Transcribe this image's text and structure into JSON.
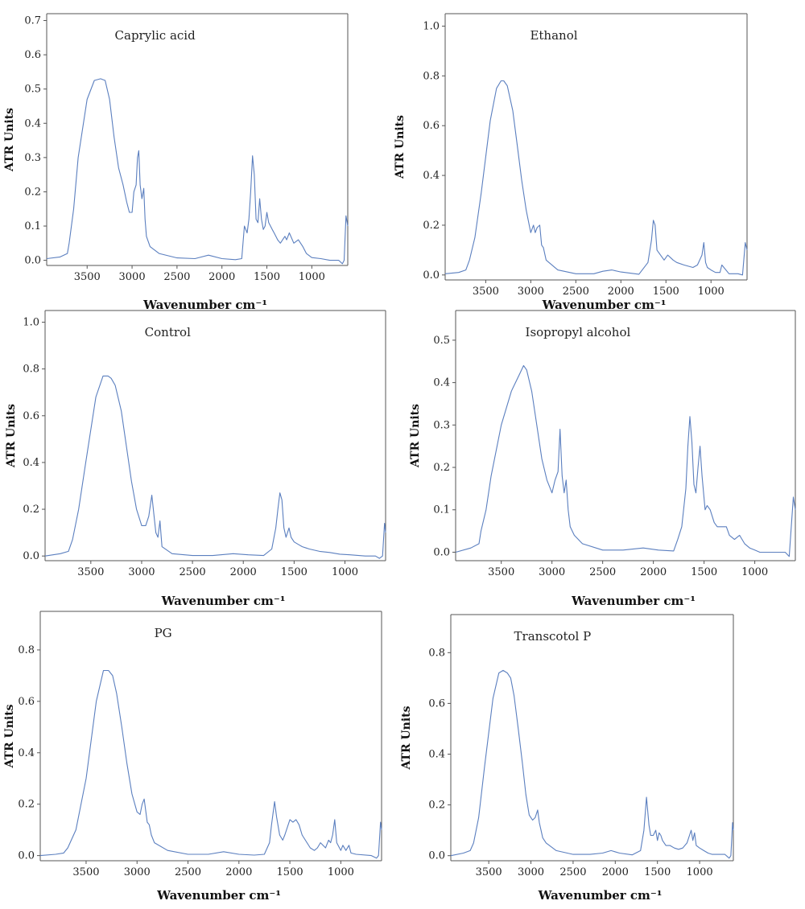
{
  "figure": {
    "type": "multi-panel FTIR-ATR spectra"
  },
  "chart_data": [
    {
      "type": "line",
      "title": "Caprylic acid",
      "xlabel": "Wavenumber cm⁻¹",
      "ylabel": "ATR Units",
      "xlim": [
        3950,
        600
      ],
      "ylim": [
        -0.015,
        0.72
      ],
      "xticks": [
        3500,
        3000,
        2500,
        2000,
        1500,
        1000
      ],
      "yticks": [
        0.0,
        0.1,
        0.2,
        0.3,
        0.4,
        0.5,
        0.6,
        0.7
      ],
      "ytick_labels": [
        "0.0",
        "0.1",
        "0.2",
        "0.3",
        "0.4",
        "0.5",
        "0.6",
        "0.7"
      ],
      "series": [
        {
          "color": "#5b7fbf",
          "x": [
            3950,
            3800,
            3720,
            3700,
            3650,
            3600,
            3500,
            3420,
            3350,
            3300,
            3250,
            3200,
            3150,
            3100,
            3060,
            3030,
            3000,
            2980,
            2955,
            2940,
            2925,
            2910,
            2890,
            2870,
            2855,
            2840,
            2800,
            2700,
            2500,
            2300,
            2150,
            2000,
            1850,
            1780,
            1750,
            1720,
            1700,
            1680,
            1660,
            1640,
            1620,
            1600,
            1580,
            1560,
            1540,
            1520,
            1500,
            1480,
            1460,
            1440,
            1420,
            1400,
            1380,
            1350,
            1300,
            1280,
            1250,
            1200,
            1150,
            1100,
            1060,
            1000,
            900,
            800,
            700,
            660,
            640,
            620,
            600
          ],
          "y": [
            0.005,
            0.01,
            0.02,
            0.05,
            0.15,
            0.3,
            0.47,
            0.525,
            0.53,
            0.525,
            0.47,
            0.36,
            0.27,
            0.22,
            0.17,
            0.14,
            0.14,
            0.2,
            0.22,
            0.3,
            0.32,
            0.22,
            0.18,
            0.21,
            0.12,
            0.07,
            0.04,
            0.02,
            0.007,
            0.005,
            0.015,
            0.005,
            0.002,
            0.005,
            0.1,
            0.08,
            0.12,
            0.2,
            0.305,
            0.25,
            0.12,
            0.11,
            0.18,
            0.12,
            0.09,
            0.1,
            0.14,
            0.11,
            0.1,
            0.09,
            0.08,
            0.07,
            0.06,
            0.05,
            0.07,
            0.06,
            0.08,
            0.05,
            0.06,
            0.04,
            0.02,
            0.008,
            0.005,
            0.0,
            0.0,
            -0.01,
            0.0,
            0.13,
            0.1
          ]
        }
      ]
    },
    {
      "type": "line",
      "title": "Ethanol",
      "xlabel": "Wavenumber cm⁻¹",
      "ylabel": "ATR Units",
      "xlim": [
        3950,
        600
      ],
      "ylim": [
        -0.02,
        1.05
      ],
      "xticks": [
        3500,
        3000,
        2500,
        2000,
        1500,
        1000
      ],
      "yticks": [
        0.0,
        0.2,
        0.4,
        0.6,
        0.8,
        1.0
      ],
      "ytick_labels": [
        "0.0",
        "0.2",
        "0.4",
        "0.6",
        "0.8",
        "1.0"
      ],
      "series": [
        {
          "color": "#5b7fbf",
          "x": [
            3950,
            3800,
            3720,
            3680,
            3620,
            3550,
            3450,
            3380,
            3330,
            3300,
            3260,
            3200,
            3150,
            3100,
            3050,
            3000,
            2970,
            2950,
            2930,
            2900,
            2880,
            2860,
            2830,
            2700,
            2500,
            2300,
            2200,
            2100,
            2000,
            1800,
            1700,
            1660,
            1640,
            1620,
            1600,
            1560,
            1520,
            1480,
            1450,
            1420,
            1380,
            1300,
            1200,
            1150,
            1100,
            1080,
            1060,
            1040,
            1000,
            950,
            900,
            880,
            800,
            700,
            650,
            620,
            600
          ],
          "y": [
            0.005,
            0.01,
            0.02,
            0.06,
            0.15,
            0.33,
            0.62,
            0.75,
            0.78,
            0.78,
            0.76,
            0.66,
            0.52,
            0.38,
            0.26,
            0.17,
            0.2,
            0.17,
            0.19,
            0.2,
            0.12,
            0.11,
            0.06,
            0.02,
            0.005,
            0.005,
            0.015,
            0.02,
            0.012,
            0.003,
            0.05,
            0.14,
            0.22,
            0.2,
            0.1,
            0.08,
            0.06,
            0.08,
            0.07,
            0.06,
            0.05,
            0.04,
            0.03,
            0.04,
            0.08,
            0.13,
            0.05,
            0.03,
            0.02,
            0.01,
            0.01,
            0.04,
            0.005,
            0.005,
            0.0,
            0.13,
            0.1
          ]
        }
      ]
    },
    {
      "type": "line",
      "title": "Control",
      "xlabel": "Wavenumber cm⁻¹",
      "ylabel": "ATR Units",
      "xlim": [
        3950,
        600
      ],
      "ylim": [
        -0.02,
        1.05
      ],
      "xticks": [
        3500,
        3000,
        2500,
        2000,
        1500,
        1000
      ],
      "yticks": [
        0.0,
        0.2,
        0.4,
        0.6,
        0.8,
        1.0
      ],
      "ytick_labels": [
        "0.0",
        "0.2",
        "0.4",
        "0.6",
        "0.8",
        "1.0"
      ],
      "series": [
        {
          "color": "#5b7fbf",
          "x": [
            3950,
            3800,
            3720,
            3680,
            3620,
            3550,
            3450,
            3380,
            3330,
            3300,
            3260,
            3200,
            3150,
            3100,
            3050,
            3000,
            2960,
            2930,
            2900,
            2880,
            2860,
            2840,
            2820,
            2800,
            2700,
            2500,
            2300,
            2100,
            1950,
            1800,
            1720,
            1680,
            1660,
            1640,
            1620,
            1600,
            1580,
            1550,
            1530,
            1500,
            1460,
            1420,
            1350,
            1250,
            1150,
            1050,
            950,
            800,
            700,
            660,
            630,
            610,
            600
          ],
          "y": [
            0.0,
            0.01,
            0.02,
            0.07,
            0.2,
            0.4,
            0.68,
            0.77,
            0.77,
            0.76,
            0.73,
            0.62,
            0.47,
            0.32,
            0.2,
            0.13,
            0.13,
            0.17,
            0.26,
            0.18,
            0.1,
            0.08,
            0.15,
            0.04,
            0.01,
            0.002,
            0.002,
            0.01,
            0.005,
            0.002,
            0.03,
            0.12,
            0.2,
            0.27,
            0.24,
            0.12,
            0.08,
            0.12,
            0.08,
            0.06,
            0.05,
            0.04,
            0.03,
            0.02,
            0.015,
            0.008,
            0.005,
            0.0,
            0.0,
            -0.01,
            0.0,
            0.14,
            0.1
          ]
        }
      ]
    },
    {
      "type": "line",
      "title": "Isopropyl alcohol",
      "xlabel": "Wavenumber cm⁻¹",
      "ylabel": "ATR Units",
      "xlim": [
        3950,
        600
      ],
      "ylim": [
        -0.02,
        0.57
      ],
      "xticks": [
        3500,
        3000,
        2500,
        2000,
        1500,
        1000
      ],
      "yticks": [
        0.0,
        0.1,
        0.2,
        0.3,
        0.4,
        0.5
      ],
      "ytick_labels": [
        "0.0",
        "0.1",
        "0.2",
        "0.3",
        "0.4",
        "0.5"
      ],
      "series": [
        {
          "color": "#5b7fbf",
          "x": [
            3950,
            3800,
            3720,
            3700,
            3650,
            3600,
            3500,
            3400,
            3320,
            3280,
            3250,
            3200,
            3150,
            3100,
            3050,
            3000,
            2970,
            2940,
            2920,
            2900,
            2880,
            2860,
            2840,
            2820,
            2780,
            2700,
            2500,
            2300,
            2100,
            1950,
            1800,
            1760,
            1720,
            1680,
            1660,
            1640,
            1620,
            1600,
            1580,
            1560,
            1540,
            1520,
            1490,
            1470,
            1440,
            1400,
            1370,
            1330,
            1280,
            1250,
            1200,
            1150,
            1100,
            1050,
            1000,
            950,
            900,
            800,
            700,
            660,
            620,
            600
          ],
          "y": [
            0.0,
            0.01,
            0.02,
            0.05,
            0.1,
            0.18,
            0.3,
            0.38,
            0.42,
            0.44,
            0.43,
            0.38,
            0.3,
            0.22,
            0.17,
            0.14,
            0.17,
            0.19,
            0.29,
            0.18,
            0.14,
            0.17,
            0.1,
            0.06,
            0.04,
            0.02,
            0.005,
            0.005,
            0.01,
            0.005,
            0.003,
            0.03,
            0.06,
            0.15,
            0.25,
            0.32,
            0.26,
            0.16,
            0.14,
            0.2,
            0.25,
            0.18,
            0.1,
            0.11,
            0.1,
            0.07,
            0.06,
            0.06,
            0.06,
            0.04,
            0.03,
            0.04,
            0.02,
            0.01,
            0.005,
            0.0,
            0.0,
            0.0,
            0.0,
            -0.01,
            0.13,
            0.1
          ]
        }
      ]
    },
    {
      "type": "line",
      "title": "PG",
      "xlabel": "Wavenumber cm⁻¹",
      "ylabel": "ATR Units",
      "xlim": [
        3950,
        600
      ],
      "ylim": [
        -0.02,
        0.95
      ],
      "xticks": [
        3500,
        3000,
        2500,
        2000,
        1500,
        1000
      ],
      "yticks": [
        0.0,
        0.2,
        0.4,
        0.6,
        0.8
      ],
      "ytick_labels": [
        "0.0",
        "0.2",
        "0.4",
        "0.6",
        "0.8"
      ],
      "series": [
        {
          "color": "#5b7fbf",
          "x": [
            3950,
            3800,
            3720,
            3680,
            3600,
            3500,
            3400,
            3330,
            3280,
            3240,
            3200,
            3150,
            3100,
            3050,
            3000,
            2970,
            2950,
            2930,
            2900,
            2880,
            2860,
            2830,
            2700,
            2500,
            2300,
            2150,
            2000,
            1850,
            1750,
            1700,
            1680,
            1650,
            1630,
            1600,
            1570,
            1550,
            1500,
            1470,
            1440,
            1410,
            1380,
            1300,
            1260,
            1230,
            1200,
            1150,
            1120,
            1100,
            1080,
            1060,
            1040,
            1000,
            980,
            950,
            920,
            900,
            850,
            700,
            650,
            630,
            610,
            600
          ],
          "y": [
            0.0,
            0.005,
            0.01,
            0.03,
            0.1,
            0.3,
            0.6,
            0.72,
            0.72,
            0.7,
            0.63,
            0.5,
            0.36,
            0.24,
            0.17,
            0.16,
            0.2,
            0.22,
            0.13,
            0.12,
            0.08,
            0.05,
            0.02,
            0.005,
            0.005,
            0.015,
            0.005,
            0.002,
            0.005,
            0.05,
            0.12,
            0.21,
            0.15,
            0.08,
            0.06,
            0.08,
            0.14,
            0.13,
            0.14,
            0.12,
            0.08,
            0.03,
            0.02,
            0.03,
            0.05,
            0.03,
            0.06,
            0.05,
            0.08,
            0.14,
            0.05,
            0.02,
            0.04,
            0.02,
            0.04,
            0.01,
            0.005,
            0.0,
            -0.01,
            0.0,
            0.13,
            0.1
          ]
        }
      ]
    },
    {
      "type": "line",
      "title": "Transcotol P",
      "xlabel": "Wavenumber cm⁻¹",
      "ylabel": "ATR Units",
      "xlim": [
        3950,
        600
      ],
      "ylim": [
        -0.02,
        0.95
      ],
      "xticks": [
        3500,
        3000,
        2500,
        2000,
        1500,
        1000
      ],
      "yticks": [
        0.0,
        0.2,
        0.4,
        0.6,
        0.8
      ],
      "ytick_labels": [
        "0.0",
        "0.2",
        "0.4",
        "0.6",
        "0.8"
      ],
      "series": [
        {
          "color": "#5b7fbf",
          "x": [
            3950,
            3800,
            3720,
            3680,
            3620,
            3550,
            3450,
            3380,
            3330,
            3280,
            3240,
            3200,
            3150,
            3100,
            3060,
            3020,
            2980,
            2950,
            2920,
            2900,
            2880,
            2860,
            2820,
            2700,
            2500,
            2300,
            2150,
            2050,
            1950,
            1800,
            1700,
            1660,
            1630,
            1600,
            1580,
            1550,
            1520,
            1500,
            1480,
            1460,
            1440,
            1400,
            1350,
            1300,
            1250,
            1200,
            1150,
            1120,
            1100,
            1080,
            1060,
            1040,
            1000,
            950,
            900,
            850,
            700,
            650,
            630,
            610,
            600
          ],
          "y": [
            0.0,
            0.01,
            0.02,
            0.05,
            0.15,
            0.35,
            0.62,
            0.72,
            0.73,
            0.72,
            0.7,
            0.63,
            0.5,
            0.36,
            0.24,
            0.16,
            0.14,
            0.15,
            0.18,
            0.13,
            0.1,
            0.07,
            0.05,
            0.02,
            0.005,
            0.005,
            0.01,
            0.02,
            0.01,
            0.003,
            0.02,
            0.1,
            0.23,
            0.12,
            0.08,
            0.08,
            0.1,
            0.06,
            0.09,
            0.08,
            0.06,
            0.04,
            0.04,
            0.03,
            0.025,
            0.03,
            0.05,
            0.08,
            0.1,
            0.06,
            0.09,
            0.04,
            0.03,
            0.02,
            0.01,
            0.005,
            0.005,
            -0.01,
            0.0,
            0.13,
            0.1
          ]
        }
      ]
    }
  ]
}
